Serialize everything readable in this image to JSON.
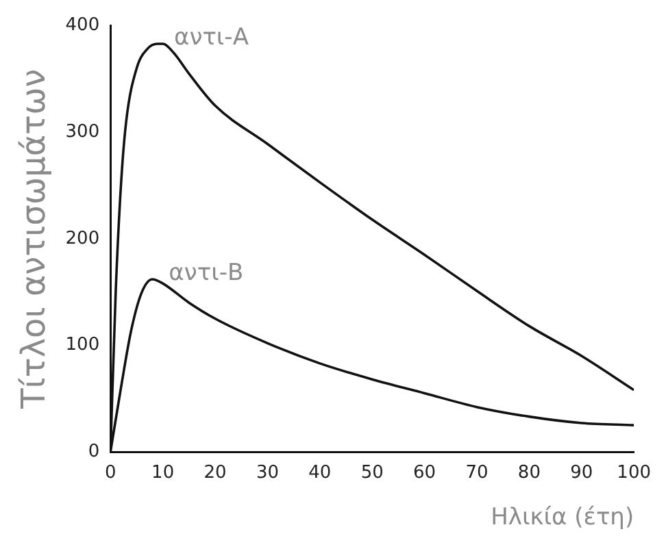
{
  "chart_data": {
    "type": "line",
    "xlabel": "Ηλικία (έτη)",
    "ylabel": "Τίτλοι αντισωμάτων",
    "xlim": [
      0,
      100
    ],
    "ylim": [
      0,
      400
    ],
    "xticks": [
      0,
      10,
      20,
      30,
      40,
      50,
      60,
      70,
      80,
      90,
      100
    ],
    "yticks": [
      0,
      100,
      200,
      300,
      400
    ],
    "grid": false,
    "legend": false,
    "marker": "none",
    "line_style": "solid",
    "series": [
      {
        "name": "αντι-A",
        "color": "#111111",
        "x": [
          0,
          1,
          2,
          3,
          5,
          7,
          9,
          10,
          12,
          15,
          20,
          30,
          40,
          50,
          60,
          70,
          80,
          90,
          100
        ],
        "values": [
          0,
          150,
          250,
          310,
          360,
          378,
          383,
          383,
          375,
          355,
          325,
          289,
          253,
          218,
          185,
          151,
          118,
          90,
          58
        ]
      },
      {
        "name": "αντι-B",
        "color": "#111111",
        "x": [
          0,
          2,
          4,
          6,
          8,
          10,
          15,
          20,
          30,
          40,
          50,
          60,
          70,
          80,
          90,
          100
        ],
        "values": [
          0,
          60,
          115,
          150,
          162,
          158,
          140,
          125,
          102,
          83,
          68,
          55,
          42,
          33,
          27,
          25
        ]
      }
    ]
  }
}
